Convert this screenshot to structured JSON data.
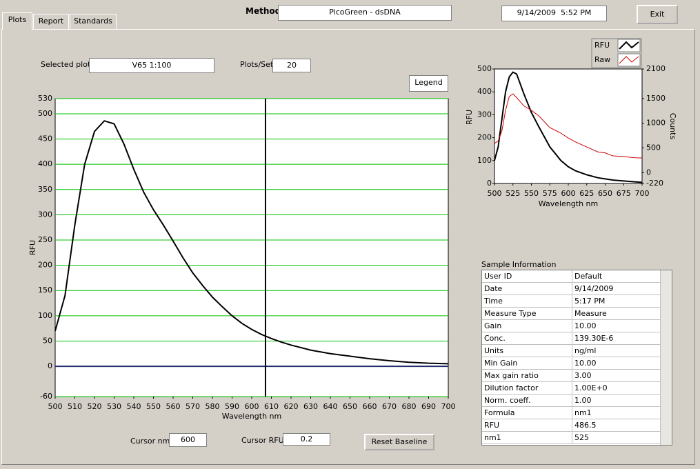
{
  "tabs": [
    "Plots",
    "Report",
    "Standards"
  ],
  "header": {
    "method_label": "Method",
    "method": "PicoGreen - dsDNA",
    "datetime": "9/14/2009  5:52 PM",
    "exit": "Exit"
  },
  "controls": {
    "selected_plot_label": "Selected plot",
    "selected_plot": "V65 1:100",
    "plots_per_set_label": "Plots/Set",
    "plots_per_set": 20,
    "legend_button": "Legend",
    "cursor_nm_label": "Cursor nm",
    "cursor_nm": 600,
    "cursor_rfu_label": "Cursor RFU",
    "cursor_rfu": 0.2,
    "reset_button": "Reset Baseline"
  },
  "chart_data": [
    {
      "type": "line",
      "x_label": "Wavelength nm",
      "y_label": "RFU",
      "x": [
        500,
        505,
        510,
        515,
        520,
        525,
        530,
        535,
        540,
        545,
        550,
        555,
        560,
        565,
        570,
        575,
        580,
        585,
        590,
        595,
        600,
        605,
        610,
        615,
        620,
        630,
        640,
        650,
        660,
        670,
        680,
        690,
        700
      ],
      "series": [
        {
          "color": "#000000",
          "values": [
            70,
            140,
            280,
            400,
            465,
            486,
            480,
            440,
            390,
            345,
            310,
            280,
            248,
            215,
            185,
            160,
            137,
            118,
            100,
            85,
            73,
            63,
            55,
            48,
            42,
            32,
            25,
            20,
            15,
            11,
            8,
            6,
            5
          ]
        }
      ],
      "xlim": [
        500,
        700
      ],
      "xticks": [
        500,
        510,
        520,
        530,
        540,
        550,
        560,
        570,
        580,
        590,
        600,
        610,
        620,
        630,
        640,
        650,
        660,
        670,
        680,
        690,
        700
      ],
      "ylim": [
        -60,
        530
      ],
      "yticks": [
        -60,
        0,
        50,
        100,
        150,
        200,
        250,
        300,
        350,
        400,
        450,
        500,
        530
      ],
      "grid": true,
      "grid_color": "#00c000",
      "baseline_color": "#1f2f6f",
      "cursor_x": 607
    },
    {
      "type": "line",
      "x_label": "Wavelength  nm",
      "y_label": "RFU",
      "y2_label": "Counts",
      "x": [
        500,
        505,
        510,
        515,
        520,
        525,
        530,
        540,
        550,
        560,
        575,
        590,
        600,
        610,
        625,
        640,
        650,
        660,
        675,
        690,
        700
      ],
      "series": [
        {
          "name": "RFU",
          "color": "#000000",
          "values": [
            100,
            160,
            280,
            400,
            465,
            486,
            478,
            390,
            310,
            248,
            160,
            100,
            73,
            55,
            38,
            25,
            20,
            15,
            11,
            7,
            5
          ]
        },
        {
          "name": "Raw",
          "color": "#cc0000",
          "axis": "y2",
          "values": [
            591,
            640,
            842,
            1262,
            1541,
            1597,
            1520,
            1350,
            1262,
            1150,
            912,
            800,
            700,
            620,
            520,
            420,
            400,
            340,
            325,
            300,
            297
          ]
        }
      ],
      "xlim": [
        500,
        700
      ],
      "xticks": [
        500,
        525,
        550,
        575,
        600,
        625,
        650,
        675,
        700
      ],
      "ylim": [
        0,
        500
      ],
      "yticks": [
        0,
        100,
        200,
        300,
        400,
        500
      ],
      "y2lim": [
        -220,
        2100
      ],
      "y2ticks": [
        -220,
        0,
        500,
        1000,
        1500,
        2100
      ],
      "grid": false,
      "legend": "top-right"
    }
  ],
  "sample_info": {
    "title": "Sample Information",
    "rows": [
      [
        "User ID",
        "Default"
      ],
      [
        "Date",
        "9/14/2009"
      ],
      [
        "Time",
        "5:17 PM"
      ],
      [
        "Measure Type",
        "Measure"
      ],
      [
        "Gain",
        "10.00"
      ],
      [
        "Conc.",
        "139.30E-6"
      ],
      [
        "Units",
        "ng/ml"
      ],
      [
        "Min Gain",
        "10.00"
      ],
      [
        "Max gain ratio",
        "3.00"
      ],
      [
        "Dilution factor",
        "1.00E+0"
      ],
      [
        "Norm. coeff.",
        "1.00"
      ],
      [
        "Formula",
        "nm1"
      ],
      [
        "RFU",
        "486.5"
      ],
      [
        "nm1",
        "525"
      ]
    ]
  }
}
